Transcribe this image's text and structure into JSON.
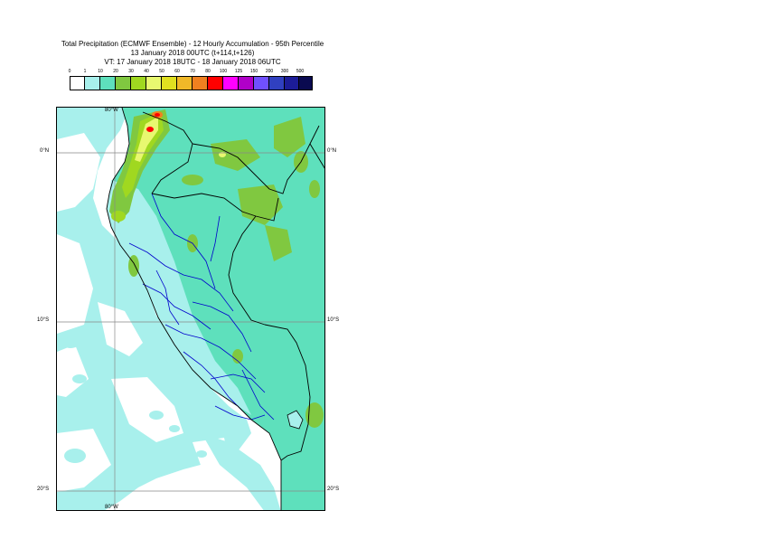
{
  "title": {
    "line1": "Total Precipitation (ECMWF Ensemble) - 12 Hourly Accumulation - 95th Percentile",
    "line2": "13 January 2018 00UTC (t+114,t+126)",
    "line3": "VT: 17 January 2018 18UTC - 18 January 2018 06UTC"
  },
  "legend": {
    "ticks": [
      "0",
      "1",
      "10",
      "20",
      "30",
      "40",
      "50",
      "60",
      "70",
      "80",
      "100",
      "125",
      "150",
      "200",
      "300",
      "500"
    ],
    "colors": [
      "#ffffff",
      "#a8f0ec",
      "#5ee0bc",
      "#80c840",
      "#a0d820",
      "#e8f870",
      "#e0e020",
      "#f0b828",
      "#f08020",
      "#ff0000",
      "#ff00ff",
      "#b000c8",
      "#7050ff",
      "#3040c0",
      "#1c1c98",
      "#0a0a50"
    ]
  },
  "map": {
    "lon_labels": {
      "top": "80°W",
      "bottom": "80°W"
    },
    "lat_labels": {
      "eq_left": "0°N",
      "eq_right": "0°N",
      "s10_left": "10°S",
      "s10_right": "10°S",
      "s20_left": "20°S",
      "s20_right": "20°S"
    },
    "colors": {
      "land": "#5ee0bc",
      "light": "#a8f0ec",
      "mid": "#80c840",
      "bright": "#a0d820",
      "yellow": "#e8f870",
      "red": "#ff0000",
      "borders": "#000000",
      "regions": "#0000cc"
    }
  }
}
